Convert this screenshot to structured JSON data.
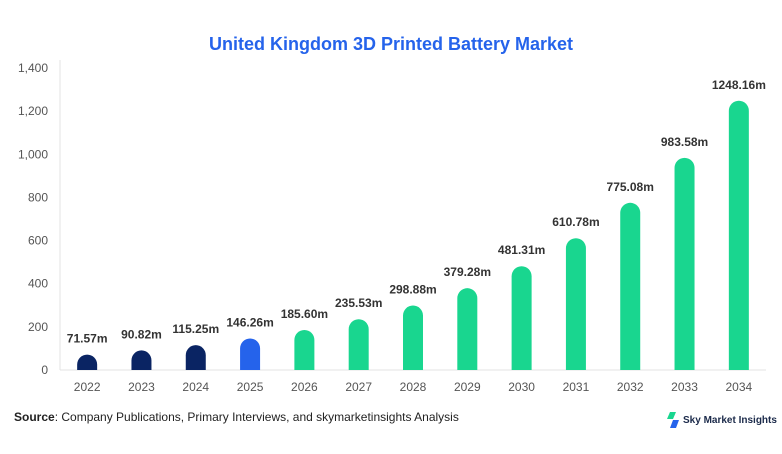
{
  "chart_data": {
    "type": "bar",
    "title": "United Kingdom 3D Printed Battery Market",
    "categories": [
      "2022",
      "2023",
      "2024",
      "2025",
      "2026",
      "2027",
      "2028",
      "2029",
      "2030",
      "2031",
      "2032",
      "2033",
      "2034"
    ],
    "values": [
      71.57,
      90.82,
      115.25,
      146.26,
      185.6,
      235.53,
      298.88,
      379.28,
      481.31,
      610.78,
      775.08,
      983.58,
      1248.16
    ],
    "data_labels": [
      "71.57m",
      "90.82m",
      "115.25m",
      "146.26m",
      "185.60m",
      "235.53m",
      "298.88m",
      "379.28m",
      "481.31m",
      "610.78m",
      "775.08m",
      "983.58m",
      "1248.16m"
    ],
    "bar_colors": [
      "#0a2463",
      "#0a2463",
      "#0a2463",
      "#2563eb",
      "#19d68f",
      "#19d68f",
      "#19d68f",
      "#19d68f",
      "#19d68f",
      "#19d68f",
      "#19d68f",
      "#19d68f",
      "#19d68f"
    ],
    "ylim": [
      0,
      1400
    ],
    "yticks": [
      0,
      200,
      400,
      600,
      800,
      1000,
      1200,
      1400
    ],
    "ytick_labels": [
      "0",
      "200",
      "400",
      "600",
      "800",
      "1,000",
      "1,200",
      "1,400"
    ],
    "xlabel": "",
    "ylabel": "",
    "grid": false
  },
  "source": {
    "label": "Source",
    "text": ": Company Publications, Primary Interviews, and skymarketinsights Analysis"
  },
  "logo": {
    "text": "Sky Market Insights"
  }
}
